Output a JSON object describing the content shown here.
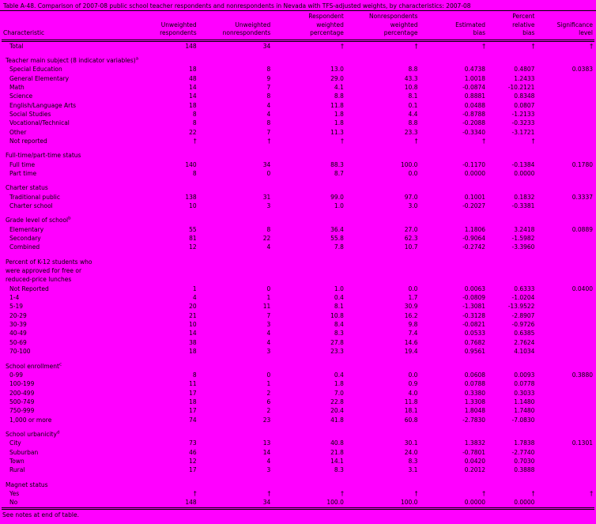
{
  "page": {
    "background_color": "#FF00FF",
    "text_color": "#000000"
  },
  "title": "Table A-48. Comparison of 2007-08 public school teacher respondents and nonrespondents in Nevada with TFS-adjusted weights, by characteristics: 2007-08",
  "footnote": "See notes at end of table.",
  "table": {
    "column_headers": [
      "Characteristic",
      "Unweighted\nrespondents",
      "Unweighted\nnonrespondents",
      "Respondent\nweighted\npercentage",
      "Nonrespondents\nweighted\npercentage",
      "Estimated\nbias",
      "Percent\nrelative\nbias",
      "Significance\nlevel"
    ],
    "dagger_note_symbol": "†",
    "rows": [
      {
        "type": "data",
        "label": "Total",
        "values": [
          "148",
          "34",
          "†",
          "†",
          "†",
          "†",
          "†"
        ]
      },
      {
        "type": "spacer"
      },
      {
        "type": "section",
        "label": "Teacher main subject (8 indicator variables)",
        "sup": "a"
      },
      {
        "type": "data",
        "label": "Special Education",
        "values": [
          "18",
          "8",
          "13.0",
          "8.8",
          "0.4738",
          "0.4807",
          "0.0383"
        ]
      },
      {
        "type": "data",
        "label": "General Elementary",
        "values": [
          "48",
          "9",
          "29.0",
          "43.3",
          "1.0018",
          "1.2433",
          ""
        ]
      },
      {
        "type": "data",
        "label": "Math",
        "values": [
          "14",
          "7",
          "4.1",
          "10.8",
          "-0.0874",
          "-10.2121",
          ""
        ]
      },
      {
        "type": "data",
        "label": "Science",
        "values": [
          "14",
          "8",
          "8.8",
          "8.1",
          "0.8881",
          "0.8348",
          ""
        ]
      },
      {
        "type": "data",
        "label": "English/Language Arts",
        "values": [
          "18",
          "4",
          "11.8",
          "0.1",
          "0.0488",
          "0.0807",
          ""
        ]
      },
      {
        "type": "data",
        "label": "Social Studies",
        "values": [
          "8",
          "4",
          "1.8",
          "4.4",
          "-0.8788",
          "-1.2133",
          ""
        ]
      },
      {
        "type": "data",
        "label": "Vocational/Technical",
        "values": [
          "8",
          "8",
          "1.8",
          "8.8",
          "-0.2088",
          "-0.3233",
          ""
        ]
      },
      {
        "type": "data",
        "label": "Other",
        "values": [
          "22",
          "7",
          "11.3",
          "23.3",
          "-0.3340",
          "-3.1721",
          ""
        ]
      },
      {
        "type": "data",
        "label": "Not reported",
        "values": [
          "†",
          "†",
          "†",
          "†",
          "†",
          "†",
          ""
        ]
      },
      {
        "type": "spacer"
      },
      {
        "type": "section",
        "label": "Full-time/part-time status"
      },
      {
        "type": "data",
        "label": "Full time",
        "values": [
          "140",
          "34",
          "88.3",
          "100.0",
          "-0.1170",
          "-0.1384",
          "0.1780"
        ]
      },
      {
        "type": "data",
        "label": "Part time",
        "values": [
          "8",
          "0",
          "8.7",
          "0.0",
          "0.0000",
          "0.0000",
          ""
        ]
      },
      {
        "type": "spacer"
      },
      {
        "type": "section",
        "label": "Charter status"
      },
      {
        "type": "data",
        "label": "Traditional public",
        "values": [
          "138",
          "31",
          "99.0",
          "97.0",
          "0.1001",
          "0.1832",
          "0.3337"
        ]
      },
      {
        "type": "data",
        "label": "Charter school",
        "values": [
          "10",
          "3",
          "1.0",
          "3.0",
          "-0.2027",
          "-0.3381",
          ""
        ]
      },
      {
        "type": "spacer"
      },
      {
        "type": "section",
        "label": "Grade level of school",
        "sup": "b"
      },
      {
        "type": "data",
        "label": "Elementary",
        "values": [
          "55",
          "8",
          "36.4",
          "27.0",
          "1.1806",
          "3.2418",
          "0.0889"
        ]
      },
      {
        "type": "data",
        "label": "Secondary",
        "values": [
          "81",
          "22",
          "55.8",
          "62.3",
          "-0.9064",
          "-1.5982",
          ""
        ]
      },
      {
        "type": "data",
        "label": "Combined",
        "values": [
          "12",
          "4",
          "7.8",
          "10.7",
          "-0.2742",
          "-3.3960",
          ""
        ]
      },
      {
        "type": "spacer"
      },
      {
        "type": "section",
        "label": "Percent of K-12 students who\nwere approved for free or\nreduced-price lunches"
      },
      {
        "type": "data",
        "label": "Not Reported",
        "values": [
          "1",
          "0",
          "1.0",
          "0.0",
          "0.0063",
          "0.6333",
          "0.0400"
        ]
      },
      {
        "type": "data",
        "label": "1-4",
        "values": [
          "4",
          "1",
          "0.4",
          "1.7",
          "-0.0809",
          "-1.0204",
          ""
        ]
      },
      {
        "type": "data",
        "label": "5-19",
        "values": [
          "20",
          "11",
          "8.1",
          "30.9",
          "-1.3081",
          "-13.9522",
          ""
        ]
      },
      {
        "type": "data",
        "label": "20-29",
        "values": [
          "21",
          "7",
          "10.8",
          "16.2",
          "-0.3128",
          "-2.8907",
          ""
        ]
      },
      {
        "type": "data",
        "label": "30-39",
        "values": [
          "10",
          "3",
          "8.4",
          "9.8",
          "-0.0821",
          "-0.9726",
          ""
        ]
      },
      {
        "type": "data",
        "label": "40-49",
        "values": [
          "14",
          "4",
          "8.3",
          "7.4",
          "0.0533",
          "0.6385",
          ""
        ]
      },
      {
        "type": "data",
        "label": "50-69",
        "values": [
          "38",
          "4",
          "27.8",
          "14.6",
          "0.7682",
          "2.7624",
          ""
        ]
      },
      {
        "type": "data",
        "label": "70-100",
        "values": [
          "18",
          "3",
          "23.3",
          "19.4",
          "0.9561",
          "4.1034",
          ""
        ]
      },
      {
        "type": "spacer"
      },
      {
        "type": "section",
        "label": "School enrollment",
        "sup": "c"
      },
      {
        "type": "data",
        "label": "0-99",
        "values": [
          "8",
          "0",
          "0.4",
          "0.0",
          "0.0608",
          "0.0093",
          "0.3880"
        ]
      },
      {
        "type": "data",
        "label": "100-199",
        "values": [
          "11",
          "1",
          "1.8",
          "0.9",
          "0.0788",
          "0.0778",
          ""
        ]
      },
      {
        "type": "data",
        "label": "200-499",
        "values": [
          "17",
          "2",
          "7.0",
          "4.0",
          "0.3380",
          "0.3033",
          ""
        ]
      },
      {
        "type": "data",
        "label": "500-749",
        "values": [
          "18",
          "6",
          "22.8",
          "11.8",
          "1.3308",
          "1.1480",
          ""
        ]
      },
      {
        "type": "data",
        "label": "750-999",
        "values": [
          "17",
          "2",
          "20.4",
          "18.1",
          "1.8048",
          "1.7480",
          ""
        ]
      },
      {
        "type": "data",
        "label": "1,000 or more",
        "values": [
          "74",
          "23",
          "41.8",
          "60.8",
          "-2.7830",
          "-7.0830",
          ""
        ]
      },
      {
        "type": "spacer"
      },
      {
        "type": "section",
        "label": "School urbanicity",
        "sup": "d"
      },
      {
        "type": "data",
        "label": "City",
        "values": [
          "73",
          "13",
          "40.8",
          "30.1",
          "1.3832",
          "1.7838",
          "0.1301"
        ]
      },
      {
        "type": "data",
        "label": "Suburban",
        "values": [
          "46",
          "14",
          "21.8",
          "24.0",
          "-0.7801",
          "-2.7740",
          ""
        ]
      },
      {
        "type": "data",
        "label": "Town",
        "values": [
          "12",
          "4",
          "14.1",
          "8.3",
          "0.0420",
          "0.7030",
          ""
        ]
      },
      {
        "type": "data",
        "label": "Rural",
        "values": [
          "17",
          "3",
          "8.3",
          "3.1",
          "0.2012",
          "0.3888",
          ""
        ]
      },
      {
        "type": "spacer"
      },
      {
        "type": "section",
        "label": "Magnet status"
      },
      {
        "type": "data",
        "label": "Yes",
        "values": [
          "†",
          "†",
          "†",
          "†",
          "†",
          "†",
          "†"
        ]
      },
      {
        "type": "data",
        "label": "No",
        "values": [
          "148",
          "34",
          "100.0",
          "100.0",
          "0.0000",
          "0.0000",
          ""
        ]
      }
    ]
  }
}
